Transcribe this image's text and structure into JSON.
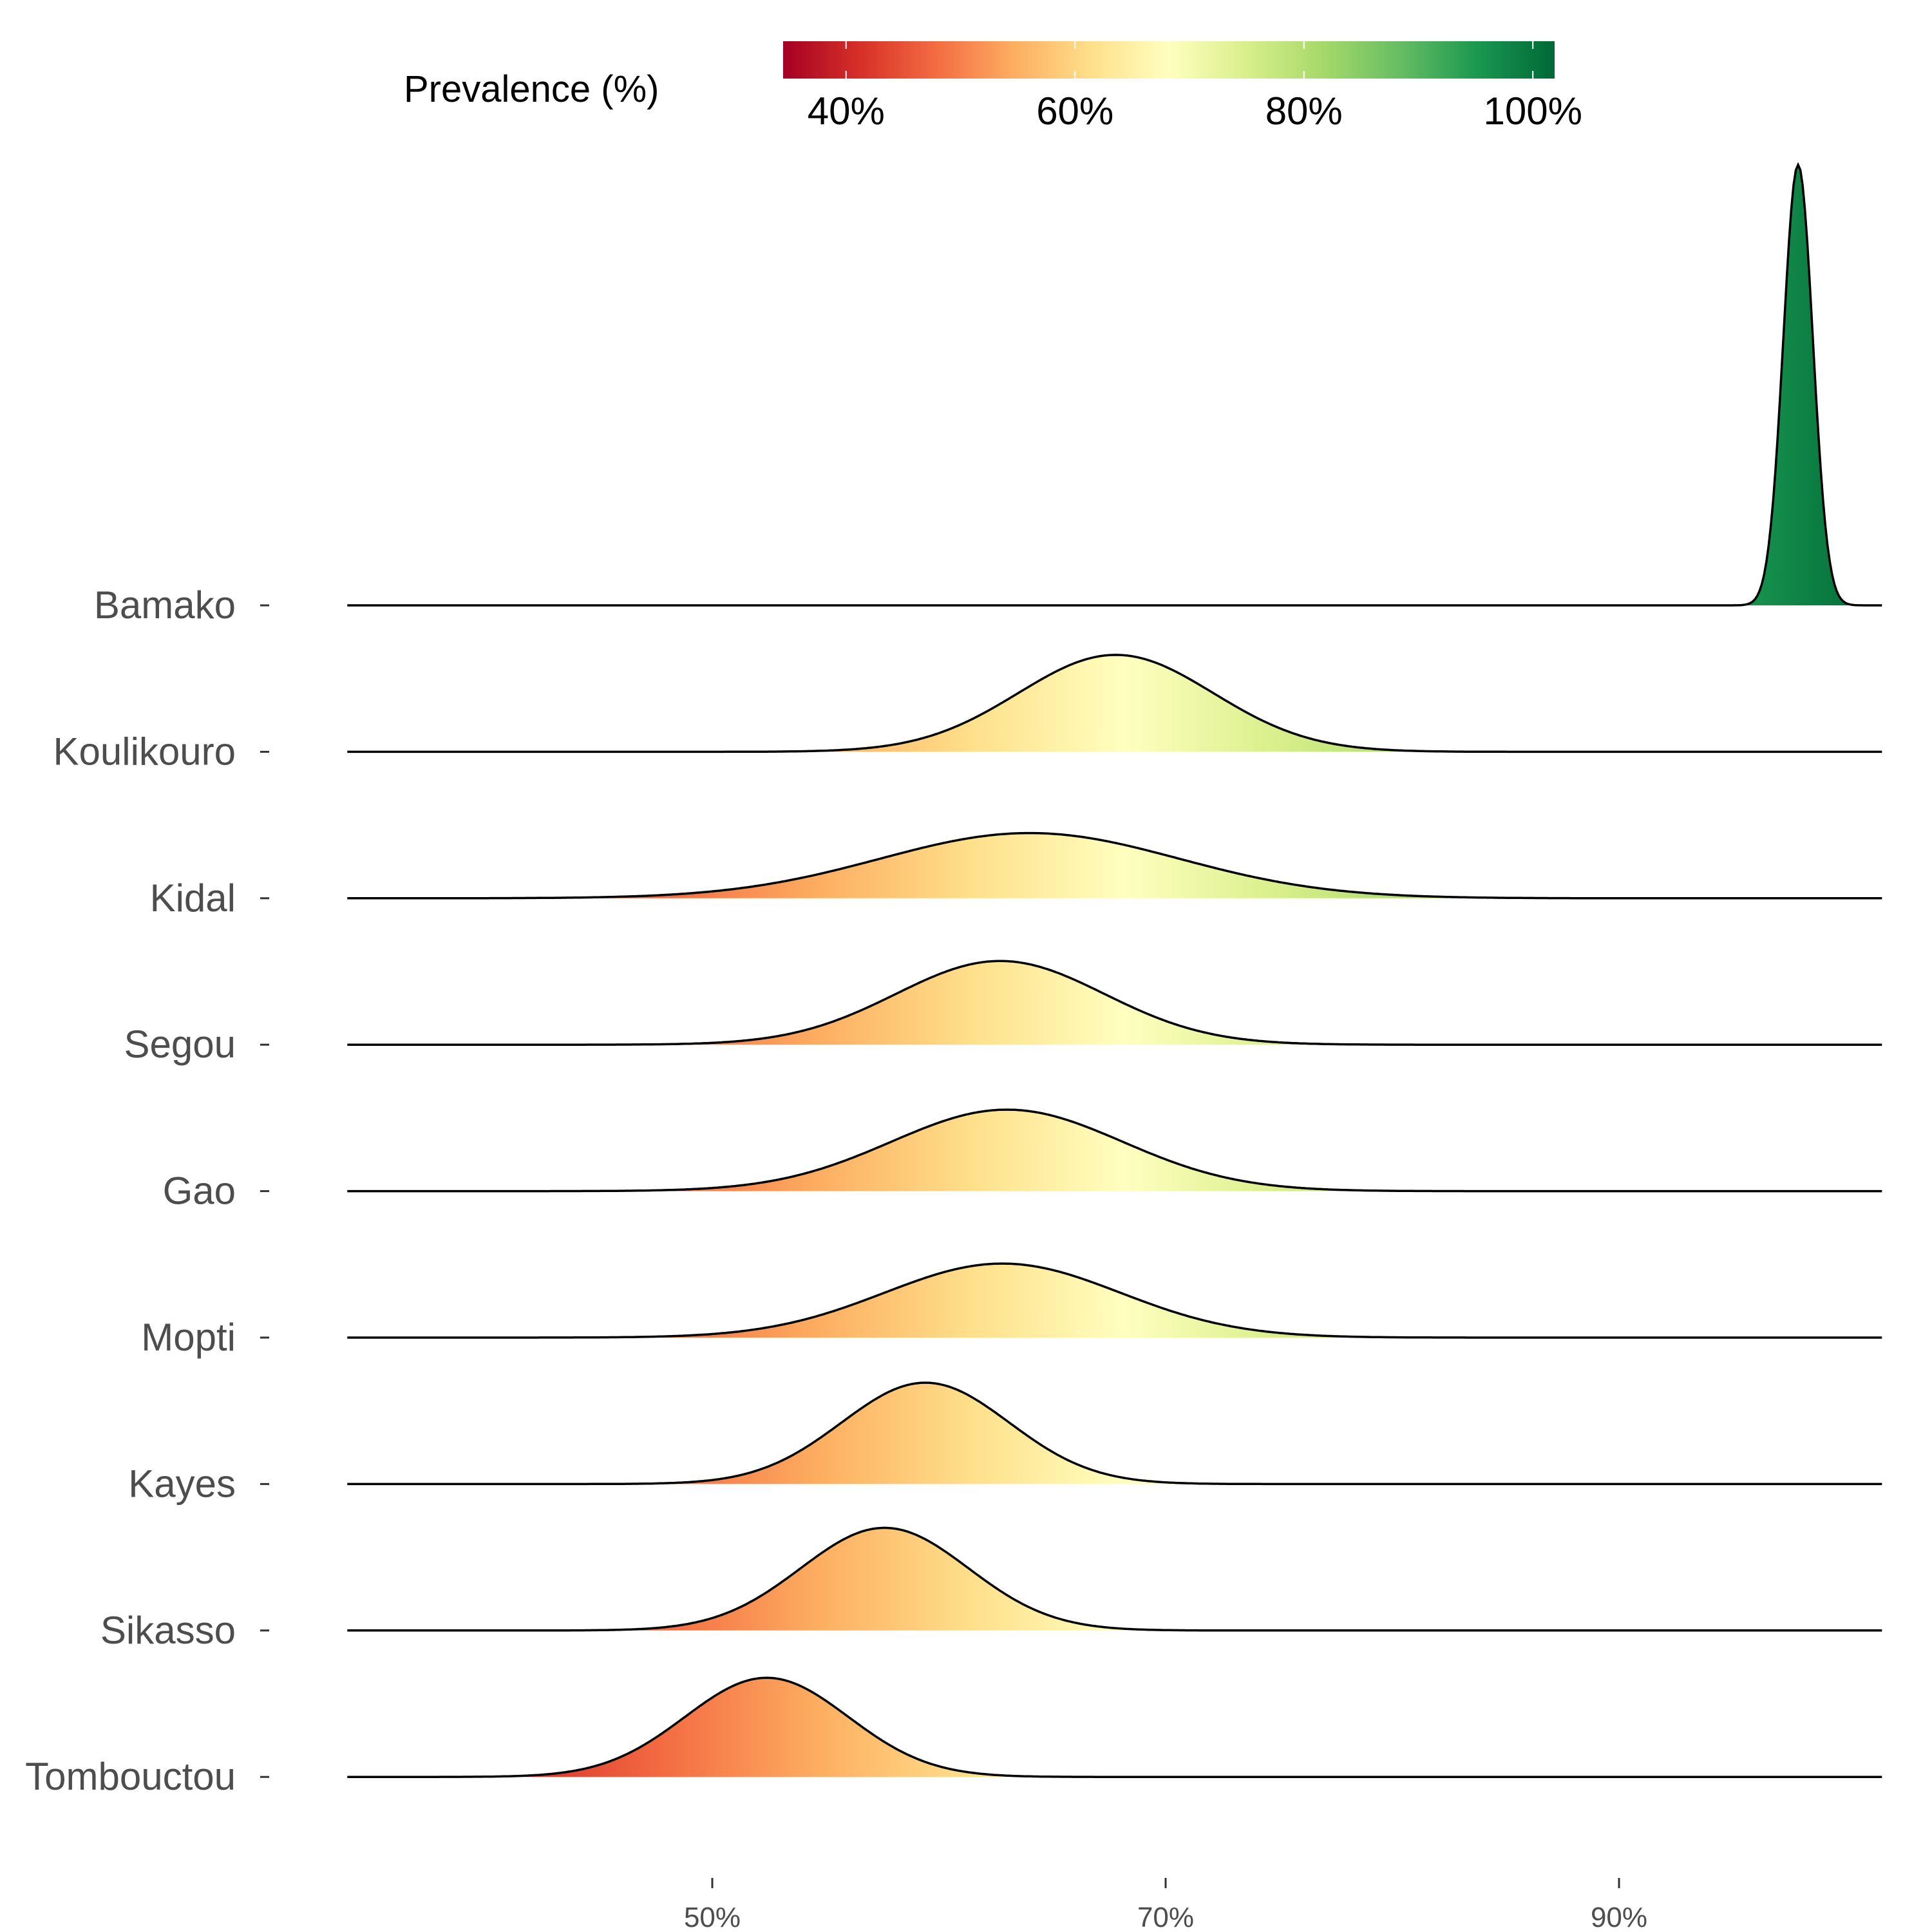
{
  "chart_data": {
    "type": "ridgeline-density",
    "title": "",
    "xlabel": "",
    "ylabel": "",
    "xlim": [
      33.9,
      101.6
    ],
    "x_ticks": [
      {
        "value": 50,
        "label": "50%"
      },
      {
        "value": 70,
        "label": "70%"
      },
      {
        "value": 90,
        "label": "90%"
      }
    ],
    "legend": {
      "title": "Prevalence (%)",
      "placement": "top",
      "type": "colorbar",
      "range": [
        34.5,
        101.9
      ],
      "ticks": [
        {
          "value": 40,
          "label": "40%"
        },
        {
          "value": 60,
          "label": "60%"
        },
        {
          "value": 80,
          "label": "80%"
        },
        {
          "value": 100,
          "label": "100%"
        }
      ],
      "palette": [
        "#a50026",
        "#d73027",
        "#f46d43",
        "#fdae61",
        "#fee08b",
        "#ffffbf",
        "#d9ef8b",
        "#a6d96a",
        "#66bd63",
        "#1a9850",
        "#006837"
      ]
    },
    "series": [
      {
        "name": "Bamako",
        "mean": 97.9,
        "sd": 0.65,
        "relative_peak": 1.0
      },
      {
        "name": "Koulikouro",
        "mean": 67.8,
        "sd": 4.3,
        "relative_peak": 0.22
      },
      {
        "name": "Kidal",
        "mean": 64.0,
        "sd": 6.6,
        "relative_peak": 0.148
      },
      {
        "name": "Segou",
        "mean": 62.7,
        "sd": 4.6,
        "relative_peak": 0.19
      },
      {
        "name": "Gao",
        "mean": 63.0,
        "sd": 5.1,
        "relative_peak": 0.185
      },
      {
        "name": "Mopti",
        "mean": 62.8,
        "sd": 5.2,
        "relative_peak": 0.168
      },
      {
        "name": "Kayes",
        "mean": 59.4,
        "sd": 3.7,
        "relative_peak": 0.23
      },
      {
        "name": "Sikasso",
        "mean": 57.6,
        "sd": 3.7,
        "relative_peak": 0.233
      },
      {
        "name": "Tombouctou",
        "mean": 52.4,
        "sd": 3.6,
        "relative_peak": 0.225
      }
    ]
  }
}
